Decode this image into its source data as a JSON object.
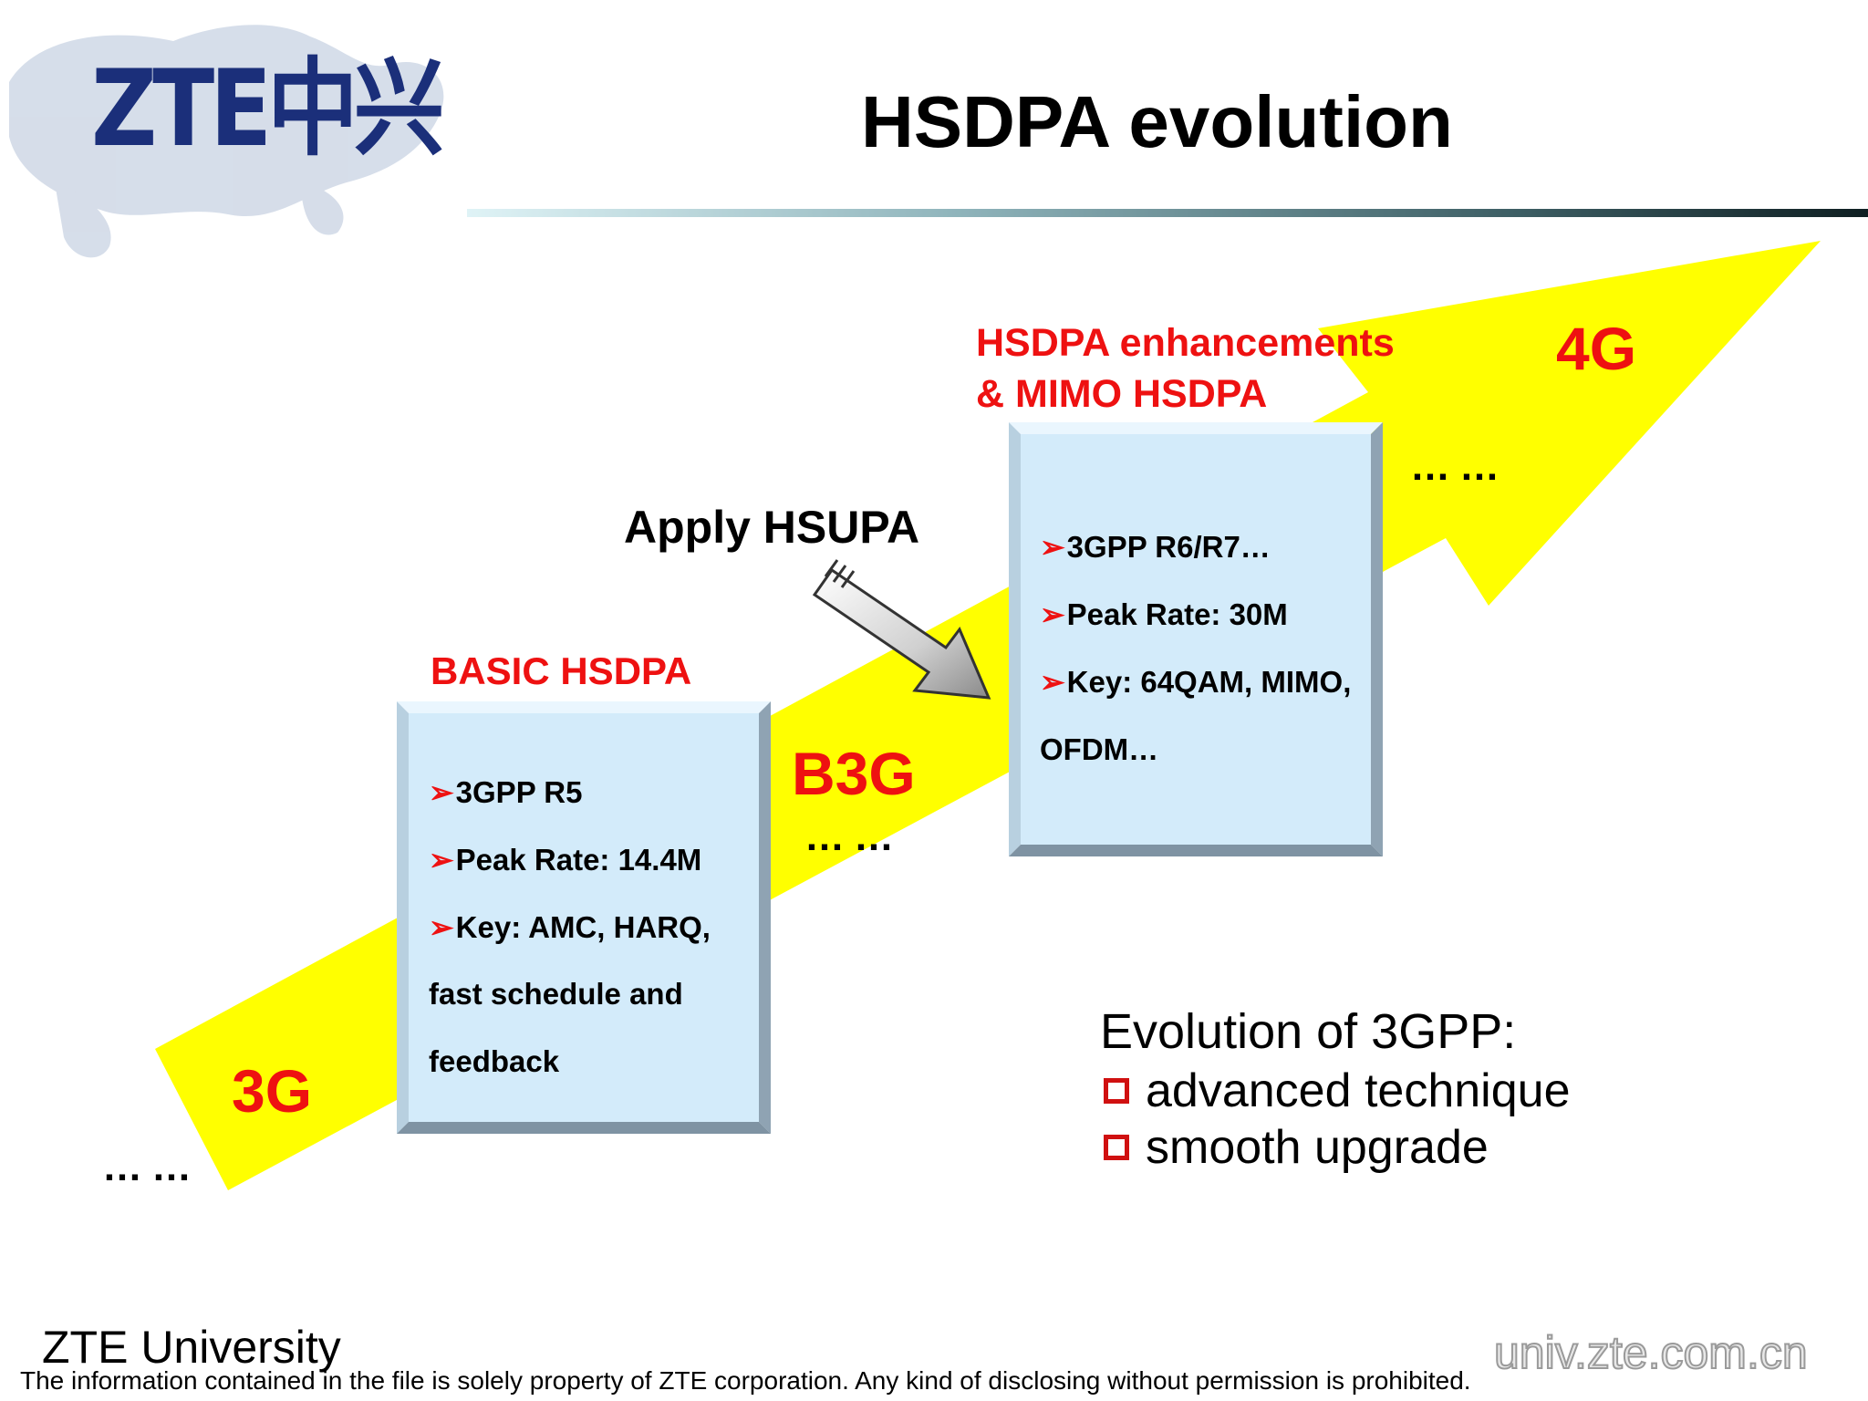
{
  "logo": {
    "text": "ZTE中兴"
  },
  "title": "HSDPA evolution",
  "stages": {
    "g3": "3G",
    "b3g": "B3G",
    "g4": "4G"
  },
  "ellipsis": "……",
  "basic": {
    "heading": "BASIC HSDPA",
    "lines": [
      "3GPP R5",
      "Peak Rate: 14.4M",
      "Key: AMC, HARQ,",
      "fast schedule and",
      "feedback"
    ]
  },
  "enhanced": {
    "heading_line1": "HSDPA enhancements",
    "heading_line2": "& MIMO HSDPA",
    "lines": [
      "3GPP R6/R7…",
      "Peak Rate: 30M",
      "Key: 64QAM, MIMO,",
      "OFDM…"
    ]
  },
  "apply_label": "Apply HSUPA",
  "evolution": {
    "title": "Evolution of 3GPP:",
    "items": [
      "advanced technique",
      "smooth upgrade"
    ]
  },
  "footer": {
    "university": "ZTE University",
    "disclaimer": "The information contained in the file is solely property of ZTE corporation. Any kind of disclosing without permission is prohibited.",
    "watermark": "univ.zte.com.cn"
  },
  "colors": {
    "arrow_yellow": "#ffff00",
    "label_red": "#ee1111",
    "box_fill": "#d3ebfa",
    "logo_blue": "#1b2f7a"
  }
}
